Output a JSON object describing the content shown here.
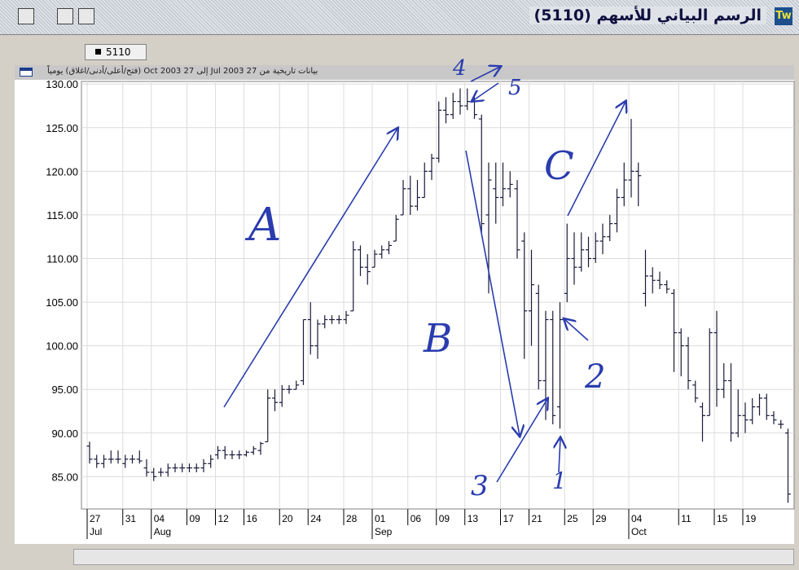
{
  "chart_data": {
    "type": "ohlc",
    "title": "الرسم البياني للأسهم (5110)",
    "subtitle": "بيانات تاريخية  من 27 Jul 2003 إلى 27 Oct 2003  (فتح/أعلى/أدنى/اغلاق) يومياً",
    "categories": [
      "27",
      null,
      null,
      null,
      null,
      "31",
      null,
      null,
      null,
      "04",
      null,
      null,
      null,
      null,
      "09",
      null,
      null,
      null,
      "12",
      null,
      null,
      null,
      "16",
      null,
      null,
      null,
      null,
      "20",
      null,
      null,
      null,
      "24",
      null,
      null,
      null,
      null,
      "28",
      null,
      null,
      null,
      "01",
      null,
      null,
      null,
      null,
      "06",
      null,
      null,
      null,
      "09",
      null,
      null,
      null,
      "13",
      null,
      null,
      null,
      null,
      "17",
      null,
      null,
      null,
      "21",
      null,
      null,
      null,
      null,
      "25",
      null,
      null,
      null,
      "29",
      null,
      null,
      null,
      null,
      "04",
      null,
      null,
      null,
      null,
      null,
      null,
      "11",
      null,
      null,
      null,
      null,
      "15",
      null,
      null,
      null,
      "19",
      null,
      null,
      null,
      null,
      null,
      null
    ],
    "month_labels": [
      "Jul",
      null,
      null,
      null,
      null,
      null,
      null,
      null,
      null,
      "Aug",
      null,
      null,
      null,
      null,
      null,
      null,
      null,
      null,
      null,
      null,
      null,
      null,
      null,
      null,
      null,
      null,
      null,
      null,
      null,
      null,
      null,
      null,
      null,
      null,
      null,
      null,
      null,
      null,
      null,
      null,
      "Sep",
      null,
      null,
      null,
      null,
      null,
      null,
      null,
      null,
      null,
      null,
      null,
      null,
      null,
      null,
      null,
      null,
      null,
      null,
      null,
      null,
      null,
      null,
      null,
      null,
      null,
      null,
      null,
      null,
      null,
      null,
      null,
      null,
      null,
      null,
      null,
      "Oct",
      null,
      null,
      null,
      null,
      null,
      null,
      null,
      null,
      null,
      null,
      null,
      null,
      null,
      null,
      null,
      null,
      null,
      null,
      null,
      null,
      null,
      null
    ],
    "series": [
      {
        "name": "5110",
        "color": "#1a1a3a",
        "values": [
          [
            88.5,
            89,
            86.5,
            87
          ],
          [
            87,
            87.5,
            86,
            86.5
          ],
          [
            86.5,
            87.5,
            86,
            87
          ],
          [
            87,
            88,
            86.5,
            87
          ],
          [
            87,
            88,
            86.5,
            87
          ],
          [
            86.5,
            87.5,
            86,
            87
          ],
          [
            87,
            87.5,
            86.5,
            87
          ],
          [
            87,
            88,
            86.5,
            86.8
          ],
          [
            86,
            87,
            85,
            85.5
          ],
          [
            85.5,
            86,
            84.5,
            85
          ],
          [
            85.5,
            86,
            85,
            85.5
          ],
          [
            85.5,
            86.5,
            85,
            86
          ],
          [
            86,
            86.5,
            85.5,
            86
          ],
          [
            86,
            86.5,
            85.5,
            86
          ],
          [
            86,
            86.5,
            85.5,
            86
          ],
          [
            86,
            86.5,
            85.5,
            86
          ],
          [
            86,
            87,
            85.5,
            86.5
          ],
          [
            86.5,
            87.5,
            86,
            87
          ],
          [
            87.5,
            88.5,
            87,
            88
          ],
          [
            88,
            88.5,
            87,
            87.5
          ],
          [
            87.5,
            88,
            87,
            87.5
          ],
          [
            87.5,
            88,
            87,
            87.5
          ],
          [
            87.5,
            88,
            87.3,
            87.8
          ],
          [
            87.8,
            88.5,
            87.5,
            88.2
          ],
          [
            88,
            89,
            87.5,
            88.8
          ],
          [
            89,
            95,
            89,
            94
          ],
          [
            94,
            95,
            92.5,
            93.5
          ],
          [
            93.5,
            95.5,
            93,
            95
          ],
          [
            95,
            95.5,
            94.5,
            95
          ],
          [
            95,
            96,
            95,
            95.5
          ],
          [
            96,
            103,
            95.5,
            103
          ],
          [
            103,
            105,
            99,
            100
          ],
          [
            100,
            103,
            98.5,
            102.5
          ],
          [
            102.5,
            103.5,
            102,
            103
          ],
          [
            103,
            103.5,
            102.5,
            103
          ],
          [
            103,
            103.5,
            102.5,
            103
          ],
          [
            103,
            104,
            102.5,
            103.5
          ],
          [
            104,
            112,
            104,
            111
          ],
          [
            111,
            111.5,
            108,
            109
          ],
          [
            109,
            110.5,
            107,
            108.5
          ],
          [
            109,
            111,
            109,
            110.5
          ],
          [
            110.5,
            111.5,
            110,
            111
          ],
          [
            111,
            112,
            110.5,
            111.5
          ],
          [
            112,
            115,
            112,
            114.5
          ],
          [
            115,
            119,
            115,
            118
          ],
          [
            118,
            119.5,
            115,
            116
          ],
          [
            116,
            119,
            115.5,
            117
          ],
          [
            117,
            121,
            117,
            120
          ],
          [
            120,
            122,
            119,
            121.5
          ],
          [
            121.5,
            128,
            121,
            127
          ],
          [
            127,
            128.5,
            125.5,
            126.5
          ],
          [
            126.5,
            129,
            126,
            128
          ],
          [
            128,
            129.5,
            126.5,
            127.5
          ],
          [
            127.5,
            129.5,
            127,
            128
          ],
          [
            128,
            128.5,
            126,
            126.5
          ],
          [
            126,
            126.5,
            113,
            114
          ],
          [
            115,
            121,
            106,
            119
          ],
          [
            118,
            121,
            114,
            117
          ],
          [
            117,
            121,
            116,
            118
          ],
          [
            118,
            120,
            117,
            118.5
          ],
          [
            118,
            119,
            110,
            111
          ],
          [
            112,
            113,
            98.5,
            104
          ],
          [
            104,
            111,
            100,
            107
          ],
          [
            106,
            107,
            95,
            96
          ],
          [
            96,
            104,
            91.5,
            103
          ],
          [
            103,
            104,
            91,
            92
          ],
          [
            93,
            105,
            90.5,
            103
          ],
          [
            106,
            114,
            105,
            110
          ],
          [
            110,
            113,
            107,
            109
          ],
          [
            109,
            113,
            108.5,
            111
          ],
          [
            111,
            112.5,
            109,
            110
          ],
          [
            110,
            113,
            109.5,
            112
          ],
          [
            112,
            114,
            110.5,
            112.5
          ],
          [
            112.5,
            115,
            112,
            114
          ],
          [
            114,
            118,
            113,
            117
          ],
          [
            117,
            121,
            116,
            119
          ],
          [
            119,
            126,
            117,
            120
          ],
          [
            120,
            121,
            116,
            119.5
          ],
          [
            106,
            111,
            104.5,
            108
          ],
          [
            108,
            109,
            106,
            107.5
          ],
          [
            107.5,
            108.5,
            106.5,
            107
          ],
          [
            107,
            107.5,
            106,
            106.5
          ],
          [
            106,
            106.5,
            97,
            101.5
          ],
          [
            101.5,
            102,
            96.5,
            100
          ],
          [
            100,
            101,
            95,
            96
          ],
          [
            95.5,
            96,
            93.5,
            94
          ],
          [
            93,
            93.5,
            89,
            92
          ],
          [
            92,
            102,
            92,
            101.5
          ],
          [
            101.5,
            104,
            93,
            95
          ],
          [
            95,
            98,
            94,
            96
          ],
          [
            96,
            98,
            89,
            90
          ],
          [
            90,
            95,
            89.5,
            92
          ],
          [
            92,
            93.5,
            90,
            91.5
          ],
          [
            91.5,
            94,
            91,
            93
          ],
          [
            93,
            94.5,
            92,
            94
          ],
          [
            94,
            94.5,
            91.5,
            92
          ],
          [
            92,
            92.5,
            91,
            91.5
          ],
          [
            91,
            91.5,
            90.5,
            91
          ],
          [
            90,
            90.5,
            82,
            83
          ]
        ]
      }
    ],
    "ylim": [
      81.3,
      130.3
    ],
    "yticks": [
      {
        "value": 85,
        "label": "85.00"
      },
      {
        "value": 90,
        "label": "90.00"
      },
      {
        "value": 95,
        "label": "95.00"
      },
      {
        "value": 100,
        "label": "100.00"
      },
      {
        "value": 105,
        "label": "105.00"
      },
      {
        "value": 110,
        "label": "110.00"
      },
      {
        "value": 115,
        "label": "115.00"
      },
      {
        "value": 120,
        "label": "120.00"
      },
      {
        "value": 125,
        "label": "125.00"
      },
      {
        "value": 130,
        "label": "130.00"
      }
    ],
    "grid": true,
    "annotations": [
      "A",
      "B",
      "C",
      "1",
      "2",
      "3",
      "4",
      "5"
    ]
  }
}
